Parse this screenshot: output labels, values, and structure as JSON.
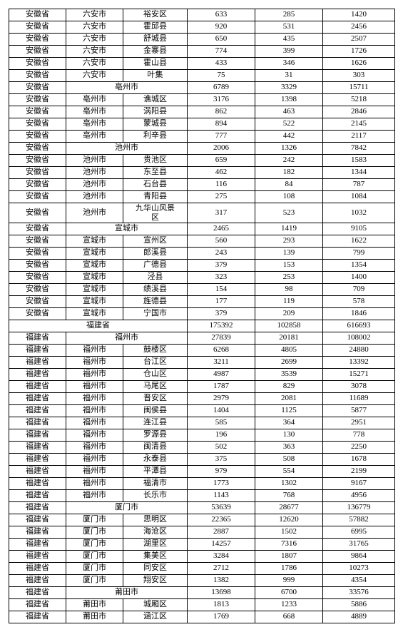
{
  "rows": [
    [
      "安徽省",
      "六安市",
      "裕安区",
      "633",
      "285",
      "1420"
    ],
    [
      "安徽省",
      "六安市",
      "霍邱县",
      "920",
      "531",
      "2456"
    ],
    [
      "安徽省",
      "六安市",
      "舒城县",
      "650",
      "435",
      "2507"
    ],
    [
      "安徽省",
      "六安市",
      "金寨县",
      "774",
      "399",
      "1726"
    ],
    [
      "安徽省",
      "六安市",
      "霍山县",
      "433",
      "346",
      "1626"
    ],
    [
      "安徽省",
      "六安市",
      "叶集",
      "75",
      "31",
      "303"
    ],
    [
      "安徽省",
      "——亳州市——",
      "",
      "6789",
      "3329",
      "15711"
    ],
    [
      "安徽省",
      "亳州市",
      "谯城区",
      "3176",
      "1398",
      "5218"
    ],
    [
      "安徽省",
      "亳州市",
      "涡阳县",
      "862",
      "463",
      "2846"
    ],
    [
      "安徽省",
      "亳州市",
      "蒙城县",
      "894",
      "522",
      "2145"
    ],
    [
      "安徽省",
      "亳州市",
      "利辛县",
      "777",
      "442",
      "2117"
    ],
    [
      "安徽省",
      "——池州市——",
      "",
      "2006",
      "1326",
      "7842"
    ],
    [
      "安徽省",
      "池州市",
      "贵池区",
      "659",
      "242",
      "1583"
    ],
    [
      "安徽省",
      "池州市",
      "东至县",
      "462",
      "182",
      "1344"
    ],
    [
      "安徽省",
      "池州市",
      "石台县",
      "116",
      "84",
      "787"
    ],
    [
      "安徽省",
      "池州市",
      "青阳县",
      "275",
      "108",
      "1084"
    ],
    [
      "安徽省",
      "池州市",
      "九华山风景区",
      "317",
      "523",
      "1032"
    ],
    [
      "安徽省",
      "——宣城市——",
      "",
      "2465",
      "1419",
      "9105"
    ],
    [
      "安徽省",
      "宣城市",
      "宣州区",
      "560",
      "293",
      "1622"
    ],
    [
      "安徽省",
      "宣城市",
      "郎溪县",
      "243",
      "139",
      "799"
    ],
    [
      "安徽省",
      "宣城市",
      "广德县",
      "379",
      "153",
      "1354"
    ],
    [
      "安徽省",
      "宣城市",
      "泾县",
      "323",
      "253",
      "1400"
    ],
    [
      "安徽省",
      "宣城市",
      "绩溪县",
      "154",
      "98",
      "709"
    ],
    [
      "安徽省",
      "宣城市",
      "旌德县",
      "177",
      "119",
      "578"
    ],
    [
      "安徽省",
      "宣城市",
      "宁国市",
      "379",
      "209",
      "1846"
    ],
    [
      "——福建省——",
      "",
      "",
      "175392",
      "102858",
      "616693"
    ],
    [
      "福建省",
      "——福州市——",
      "",
      "27839",
      "20181",
      "108002"
    ],
    [
      "福建省",
      "福州市",
      "鼓楼区",
      "6268",
      "4805",
      "24880"
    ],
    [
      "福建省",
      "福州市",
      "台江区",
      "3211",
      "2699",
      "13392"
    ],
    [
      "福建省",
      "福州市",
      "仓山区",
      "4987",
      "3539",
      "15271"
    ],
    [
      "福建省",
      "福州市",
      "马尾区",
      "1787",
      "829",
      "3078"
    ],
    [
      "福建省",
      "福州市",
      "晋安区",
      "2979",
      "2081",
      "11689"
    ],
    [
      "福建省",
      "福州市",
      "闽侯县",
      "1404",
      "1125",
      "5877"
    ],
    [
      "福建省",
      "福州市",
      "连江县",
      "585",
      "364",
      "2951"
    ],
    [
      "福建省",
      "福州市",
      "罗源县",
      "196",
      "130",
      "778"
    ],
    [
      "福建省",
      "福州市",
      "闽清县",
      "502",
      "363",
      "2250"
    ],
    [
      "福建省",
      "福州市",
      "永泰县",
      "375",
      "508",
      "1678"
    ],
    [
      "福建省",
      "福州市",
      "平潭县",
      "979",
      "554",
      "2199"
    ],
    [
      "福建省",
      "福州市",
      "福清市",
      "1773",
      "1302",
      "9167"
    ],
    [
      "福建省",
      "福州市",
      "长乐市",
      "1143",
      "768",
      "4956"
    ],
    [
      "福建省",
      "——厦门市——",
      "",
      "53639",
      "28677",
      "136779"
    ],
    [
      "福建省",
      "厦门市",
      "思明区",
      "22365",
      "12620",
      "57882"
    ],
    [
      "福建省",
      "厦门市",
      "海沧区",
      "2887",
      "1502",
      "6995"
    ],
    [
      "福建省",
      "厦门市",
      "湖里区",
      "14257",
      "7316",
      "31765"
    ],
    [
      "福建省",
      "厦门市",
      "集美区",
      "3284",
      "1807",
      "9864"
    ],
    [
      "福建省",
      "厦门市",
      "同安区",
      "2712",
      "1786",
      "10273"
    ],
    [
      "福建省",
      "厦门市",
      "翔安区",
      "1382",
      "999",
      "4354"
    ],
    [
      "福建省",
      "——莆田市——",
      "",
      "13698",
      "6700",
      "33576"
    ],
    [
      "福建省",
      "莆田市",
      "城厢区",
      "1813",
      "1233",
      "5886"
    ],
    [
      "福建省",
      "莆田市",
      "涵江区",
      "1769",
      "668",
      "4889"
    ]
  ]
}
